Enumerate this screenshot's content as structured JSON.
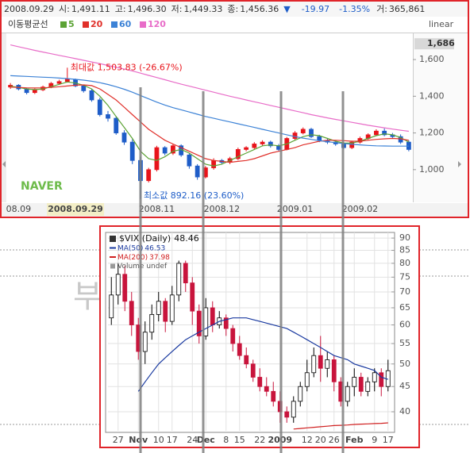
{
  "background_text": "부",
  "chart_data": [
    {
      "type": "candlestick",
      "info": {
        "date": "2008.09.29",
        "fields": [
          {
            "label": "시:",
            "value": "1,491.11"
          },
          {
            "label": "고:",
            "value": "1,496.30"
          },
          {
            "label": "저:",
            "value": "1,449.33"
          },
          {
            "label": "종:",
            "value": "1,456.36"
          }
        ],
        "arrow": "▼",
        "change": "-19.97",
        "change_pct": "-1.35%",
        "volume": {
          "label": "거:",
          "value": "365,861"
        }
      },
      "legend_title": "이동평균선",
      "scale_label": "linear",
      "watermark": "NAVER",
      "categories": [
        null,
        "08.09",
        null,
        null,
        null,
        null,
        null,
        null,
        "2008.09.29",
        null,
        null,
        null,
        null,
        null,
        null,
        null,
        null,
        null,
        "2008.11",
        null,
        null,
        null,
        null,
        null,
        null,
        null,
        "2008.12",
        null,
        null,
        null,
        null,
        null,
        null,
        null,
        null,
        "2009.01",
        null,
        null,
        null,
        null,
        null,
        null,
        null,
        "2009.02",
        null,
        null,
        null,
        null,
        null,
        null
      ],
      "open": [
        1450,
        1460,
        1440,
        1420,
        1435,
        1450,
        1470,
        1480,
        1491.11,
        1456,
        1430,
        1380,
        1300,
        1280,
        1200,
        1150,
        1050,
        940,
        1000,
        1120,
        1090,
        1130,
        1080,
        1020,
        960,
        1010,
        1050,
        1040,
        1060,
        1110,
        1120,
        1140,
        1150,
        1130,
        1110,
        1170,
        1200,
        1220,
        1180,
        1160,
        1150,
        1140,
        1120,
        1150,
        1170,
        1190,
        1210,
        1190,
        1180,
        1150
      ],
      "high": [
        1472,
        1466,
        1446,
        1442,
        1458,
        1478,
        1490,
        1503.83,
        1496.3,
        1462,
        1440,
        1392,
        1320,
        1292,
        1215,
        1165,
        1070,
        1010,
        1130,
        1128,
        1140,
        1138,
        1090,
        1030,
        1020,
        1062,
        1058,
        1070,
        1120,
        1128,
        1150,
        1160,
        1158,
        1140,
        1178,
        1210,
        1230,
        1228,
        1190,
        1168,
        1160,
        1150,
        1158,
        1180,
        1198,
        1220,
        1225,
        1200,
        1192,
        1160
      ],
      "low": [
        1440,
        1432,
        1410,
        1412,
        1428,
        1444,
        1462,
        1474,
        1449.33,
        1420,
        1370,
        1290,
        1262,
        1190,
        1135,
        1030,
        892.16,
        930,
        990,
        1078,
        1080,
        1070,
        1005,
        945,
        952,
        1000,
        1030,
        1030,
        1052,
        1100,
        1112,
        1130,
        1120,
        1100,
        1105,
        1162,
        1192,
        1172,
        1150,
        1140,
        1130,
        1110,
        1112,
        1142,
        1162,
        1185,
        1182,
        1168,
        1140,
        1100
      ],
      "close": [
        1460,
        1440,
        1420,
        1435,
        1450,
        1470,
        1480,
        1495,
        1456.36,
        1430,
        1380,
        1300,
        1280,
        1200,
        1150,
        1050,
        940,
        1000,
        1120,
        1090,
        1130,
        1080,
        1020,
        960,
        1010,
        1050,
        1040,
        1060,
        1110,
        1120,
        1140,
        1150,
        1130,
        1110,
        1170,
        1200,
        1220,
        1180,
        1160,
        1150,
        1140,
        1120,
        1150,
        1170,
        1190,
        1210,
        1190,
        1180,
        1150,
        1110
      ],
      "up_color": "#e8141b",
      "down_color": "#1e5dc8",
      "hollow_up": false,
      "series": [
        {
          "name": "5",
          "color": "#5ca335",
          "values": [
            1455,
            1448,
            1440,
            1436,
            1440,
            1452,
            1465,
            1478,
            1472,
            1460,
            1440,
            1400,
            1350,
            1290,
            1230,
            1170,
            1100,
            1060,
            1050,
            1070,
            1100,
            1110,
            1090,
            1060,
            1030,
            1020,
            1030,
            1050,
            1070,
            1090,
            1110,
            1130,
            1135,
            1130,
            1140,
            1160,
            1180,
            1190,
            1185,
            1170,
            1155,
            1145,
            1145,
            1155,
            1170,
            1185,
            1195,
            1190,
            1175,
            1150
          ]
        },
        {
          "name": "20",
          "color": "#e0302a",
          "values": [
            1450,
            1448,
            1446,
            1445,
            1446,
            1448,
            1452,
            1456,
            1460,
            1462,
            1458,
            1440,
            1410,
            1380,
            1340,
            1300,
            1260,
            1220,
            1190,
            1160,
            1140,
            1120,
            1100,
            1080,
            1060,
            1050,
            1045,
            1040,
            1045,
            1050,
            1060,
            1075,
            1090,
            1100,
            1110,
            1120,
            1135,
            1145,
            1155,
            1160,
            1160,
            1158,
            1155,
            1155,
            1160,
            1165,
            1168,
            1170,
            1168,
            1160
          ]
        },
        {
          "name": "60",
          "color": "#3c82d6",
          "values": [
            1512,
            1510,
            1508,
            1506,
            1504,
            1502,
            1499,
            1496,
            1492,
            1488,
            1482,
            1474,
            1464,
            1452,
            1438,
            1422,
            1404,
            1386,
            1368,
            1352,
            1338,
            1326,
            1314,
            1302,
            1290,
            1280,
            1270,
            1260,
            1250,
            1240,
            1230,
            1220,
            1210,
            1200,
            1190,
            1180,
            1172,
            1165,
            1158,
            1152,
            1147,
            1142,
            1138,
            1135,
            1132,
            1130,
            1129,
            1128,
            1128,
            1128
          ]
        },
        {
          "name": "120",
          "color": "#e86cc8",
          "values": [
            1680,
            1670,
            1660,
            1650,
            1641,
            1632,
            1623,
            1614,
            1605,
            1596,
            1587,
            1578,
            1568,
            1558,
            1548,
            1538,
            1526,
            1514,
            1502,
            1490,
            1478,
            1466,
            1455,
            1444,
            1433,
            1422,
            1411,
            1400,
            1390,
            1380,
            1370,
            1360,
            1350,
            1340,
            1330,
            1320,
            1310,
            1300,
            1291,
            1282,
            1274,
            1266,
            1258,
            1250,
            1242,
            1235,
            1228,
            1221,
            1215,
            1209
          ]
        }
      ],
      "ylim": [
        822,
        1743
      ],
      "yticks": [
        {
          "value": 1000,
          "label": "1,000"
        },
        {
          "value": 1200,
          "label": "1,200"
        },
        {
          "value": 1400,
          "label": "1,400"
        },
        {
          "value": 1600,
          "label": "1,600"
        }
      ],
      "current_value": {
        "value": 1686,
        "label": "1,686"
      },
      "annotations": [
        {
          "text": "최대값 1,503.83 (-26.67%)",
          "index": 7,
          "value": 1503.83
        },
        {
          "text": "최소값 892.16 (23.60%)",
          "index": 16,
          "value": 892.16
        }
      ],
      "grid": false,
      "log": false
    },
    {
      "type": "candlestick",
      "name": "$VIX (Daily)",
      "volume_label": "Volume undef",
      "categories": [
        null,
        "27",
        null,
        null,
        "Nov",
        null,
        null,
        "10",
        null,
        "17",
        null,
        null,
        "24",
        null,
        "Dec",
        null,
        null,
        "8",
        null,
        "15",
        null,
        null,
        "22",
        null,
        null,
        "2009",
        null,
        null,
        null,
        "12",
        null,
        "20",
        null,
        "26",
        null,
        null,
        "Feb",
        null,
        null,
        "9",
        null,
        "17"
      ],
      "open": [
        62,
        69,
        76,
        67,
        60,
        53,
        58,
        63,
        67,
        61,
        69,
        80,
        73,
        64,
        57,
        65,
        60,
        62,
        59,
        55,
        52,
        50,
        47,
        45,
        44,
        42,
        40,
        39,
        42,
        45,
        48,
        52,
        49,
        51,
        46,
        42,
        45,
        47,
        44,
        46,
        48,
        45
      ],
      "high": [
        75,
        80,
        79,
        70,
        62,
        61,
        66,
        70,
        68,
        72,
        81,
        81,
        75,
        66,
        68,
        67,
        64,
        63,
        60,
        57,
        54,
        51,
        49,
        47,
        46,
        44,
        41,
        43,
        46,
        51,
        54,
        57,
        53,
        52,
        47,
        46,
        49,
        48,
        47,
        49,
        49,
        51
      ],
      "low": [
        60,
        66,
        64,
        57,
        51,
        50,
        56,
        61,
        58,
        60,
        67,
        70,
        60,
        55,
        56,
        58,
        59,
        57,
        53,
        51,
        49,
        46,
        44,
        43,
        41,
        38,
        38,
        38,
        41,
        44,
        47,
        46,
        47,
        44,
        41,
        41,
        43,
        43,
        43,
        44,
        43,
        44
      ],
      "close": [
        69,
        76,
        67,
        60,
        53,
        58,
        63,
        67,
        61,
        69,
        80,
        73,
        64,
        57,
        65,
        60,
        62,
        59,
        55,
        52,
        50,
        47,
        45,
        44,
        42,
        40,
        39,
        42,
        45,
        48,
        52,
        49,
        51,
        46,
        42,
        45,
        47,
        44,
        46,
        48,
        45,
        48.46
      ],
      "up_color": "#000000",
      "down_color": "#c8143c",
      "hollow_up": true,
      "series": [
        {
          "name": "MA(50)",
          "color": "#1a3aa0",
          "values": [
            null,
            null,
            null,
            null,
            44,
            46,
            48,
            50,
            51.5,
            53,
            54.5,
            56,
            57,
            58,
            59,
            60,
            61,
            61.5,
            62,
            62,
            62,
            61.5,
            61,
            60.5,
            60,
            59.5,
            59,
            58,
            57,
            56,
            55,
            54,
            53,
            52,
            51.5,
            51,
            50,
            49.5,
            49,
            48.5,
            47,
            46.53
          ]
        },
        {
          "name": "MA(200)",
          "color": "#d02020",
          "values": [
            null,
            null,
            null,
            null,
            null,
            null,
            null,
            null,
            null,
            null,
            null,
            null,
            null,
            null,
            null,
            null,
            null,
            null,
            null,
            null,
            null,
            null,
            null,
            null,
            null,
            null,
            null,
            36.9,
            37,
            37.1,
            37.2,
            37.3,
            37.4,
            37.5,
            37.55,
            37.6,
            37.7,
            37.75,
            37.8,
            37.85,
            37.9,
            37.98
          ]
        }
      ],
      "ylim": [
        36.6,
        92.4
      ],
      "yticks": [
        40,
        45,
        50,
        55,
        60,
        65,
        70,
        75,
        80,
        85,
        90
      ],
      "grid": true,
      "log": true
    }
  ]
}
